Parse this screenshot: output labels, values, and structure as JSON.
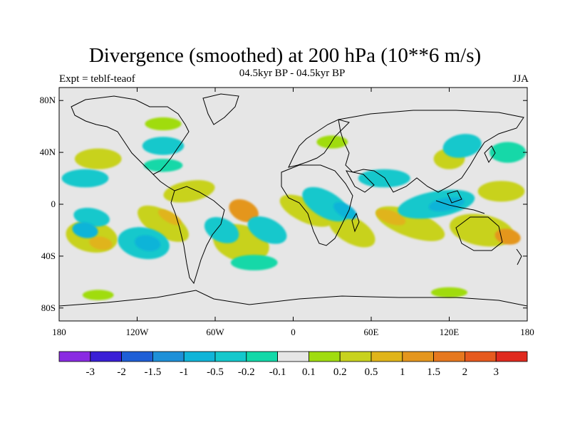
{
  "header": {
    "title": "Divergence (smoothed) at 200 hPa (10**6 m/s)",
    "experiment": "Expt = teblf-teaof",
    "period": "04.5kyr BP - 04.5kyr BP",
    "season": "JJA"
  },
  "axes": {
    "lat_ticks": [
      {
        "value": 80,
        "label": "80N"
      },
      {
        "value": 40,
        "label": "40N"
      },
      {
        "value": 0,
        "label": "0"
      },
      {
        "value": -40,
        "label": "40S"
      },
      {
        "value": -80,
        "label": "80S"
      }
    ],
    "lon_ticks": [
      {
        "value": -180,
        "label": "180"
      },
      {
        "value": -120,
        "label": "120W"
      },
      {
        "value": -60,
        "label": "60W"
      },
      {
        "value": 0,
        "label": "0"
      },
      {
        "value": 60,
        "label": "60E"
      },
      {
        "value": 120,
        "label": "120E"
      },
      {
        "value": 180,
        "label": "180"
      }
    ],
    "lon_range": [
      -180,
      180
    ],
    "lat_range": [
      -90,
      90
    ]
  },
  "colorbar": {
    "colors": [
      "#8a2be2",
      "#3a1fd6",
      "#1f5fd6",
      "#1e90d8",
      "#10b4d8",
      "#14c8cc",
      "#12d8a8",
      "#e6e6e6",
      "#a0dc10",
      "#c8d21e",
      "#e0b41a",
      "#e4961e",
      "#e6781e",
      "#e65a1e",
      "#e02a1e"
    ],
    "labels": [
      "-3",
      "-2",
      "-1.5",
      "-1",
      "-0.5",
      "-0.2",
      "-0.1",
      "0.1",
      "0.2",
      "0.5",
      "1",
      "1.5",
      "2",
      "3"
    ]
  },
  "map_data": {
    "background": "#e6e6e6",
    "fields": [
      {
        "sign": "pos",
        "level": 1,
        "lon": -155,
        "lat": -25,
        "rx": 20,
        "ry": 12,
        "rot": 10
      },
      {
        "sign": "pos",
        "level": 2,
        "lon": -148,
        "lat": -30,
        "rx": 9,
        "ry": 5,
        "rot": 10
      },
      {
        "sign": "pos",
        "level": 1,
        "lon": -100,
        "lat": -15,
        "rx": 22,
        "ry": 10,
        "rot": 30
      },
      {
        "sign": "pos",
        "level": 2,
        "lon": -95,
        "lat": -10,
        "rx": 10,
        "ry": 4,
        "rot": 30
      },
      {
        "sign": "pos",
        "level": 1,
        "lon": -40,
        "lat": -30,
        "rx": 22,
        "ry": 14,
        "rot": 15
      },
      {
        "sign": "pos",
        "level": 3,
        "lon": -38,
        "lat": -5,
        "rx": 12,
        "ry": 8,
        "rot": 25
      },
      {
        "sign": "pos",
        "level": 1,
        "lon": 10,
        "lat": -5,
        "rx": 22,
        "ry": 9,
        "rot": 25
      },
      {
        "sign": "pos",
        "level": 1,
        "lon": 45,
        "lat": -20,
        "rx": 20,
        "ry": 10,
        "rot": 30
      },
      {
        "sign": "pos",
        "level": 1,
        "lon": 90,
        "lat": -15,
        "rx": 28,
        "ry": 10,
        "rot": 20
      },
      {
        "sign": "pos",
        "level": 2,
        "lon": 75,
        "lat": -10,
        "rx": 12,
        "ry": 5,
        "rot": 20
      },
      {
        "sign": "pos",
        "level": 1,
        "lon": 145,
        "lat": -20,
        "rx": 25,
        "ry": 12,
        "rot": 10
      },
      {
        "sign": "pos",
        "level": 3,
        "lon": 165,
        "lat": -25,
        "rx": 10,
        "ry": 6,
        "rot": 10
      },
      {
        "sign": "pos",
        "level": 1,
        "lon": 120,
        "lat": 35,
        "rx": 12,
        "ry": 8,
        "rot": 0
      },
      {
        "sign": "pos",
        "level": 1,
        "lon": 160,
        "lat": 10,
        "rx": 18,
        "ry": 8,
        "rot": 0
      },
      {
        "sign": "pos",
        "level": 1,
        "lon": -150,
        "lat": 35,
        "rx": 18,
        "ry": 8,
        "rot": 0
      },
      {
        "sign": "pos",
        "level": 1,
        "lon": -80,
        "lat": 10,
        "rx": 20,
        "ry": 8,
        "rot": -10
      },
      {
        "sign": "pos",
        "level": 0,
        "lon": -150,
        "lat": -70,
        "rx": 12,
        "ry": 4,
        "rot": 0
      },
      {
        "sign": "pos",
        "level": 0,
        "lon": 120,
        "lat": -68,
        "rx": 14,
        "ry": 4,
        "rot": 0
      },
      {
        "sign": "pos",
        "level": 0,
        "lon": -100,
        "lat": 62,
        "rx": 14,
        "ry": 5,
        "rot": 0
      },
      {
        "sign": "pos",
        "level": 0,
        "lon": 30,
        "lat": 48,
        "rx": 12,
        "ry": 5,
        "rot": 0
      },
      {
        "sign": "neg",
        "level": 1,
        "lon": -155,
        "lat": -10,
        "rx": 14,
        "ry": 7,
        "rot": 10
      },
      {
        "sign": "neg",
        "level": 2,
        "lon": -160,
        "lat": -20,
        "rx": 10,
        "ry": 6,
        "rot": 10
      },
      {
        "sign": "neg",
        "level": 1,
        "lon": -115,
        "lat": -30,
        "rx": 20,
        "ry": 12,
        "rot": 10
      },
      {
        "sign": "neg",
        "level": 2,
        "lon": -112,
        "lat": -30,
        "rx": 10,
        "ry": 6,
        "rot": 10
      },
      {
        "sign": "neg",
        "level": 1,
        "lon": -55,
        "lat": -20,
        "rx": 14,
        "ry": 9,
        "rot": 25
      },
      {
        "sign": "neg",
        "level": 1,
        "lon": -20,
        "lat": -20,
        "rx": 16,
        "ry": 9,
        "rot": 25
      },
      {
        "sign": "neg",
        "level": 1,
        "lon": 25,
        "lat": 0,
        "rx": 20,
        "ry": 10,
        "rot": 30
      },
      {
        "sign": "neg",
        "level": 2,
        "lon": 40,
        "lat": -5,
        "rx": 10,
        "ry": 5,
        "rot": 30
      },
      {
        "sign": "neg",
        "level": 1,
        "lon": 110,
        "lat": 0,
        "rx": 30,
        "ry": 10,
        "rot": -10
      },
      {
        "sign": "neg",
        "level": 2,
        "lon": 118,
        "lat": 0,
        "rx": 14,
        "ry": 5,
        "rot": -10
      },
      {
        "sign": "neg",
        "level": 1,
        "lon": -160,
        "lat": 20,
        "rx": 18,
        "ry": 7,
        "rot": 0
      },
      {
        "sign": "neg",
        "level": 1,
        "lon": -100,
        "lat": 45,
        "rx": 16,
        "ry": 7,
        "rot": 0
      },
      {
        "sign": "neg",
        "level": 1,
        "lon": 70,
        "lat": 20,
        "rx": 20,
        "ry": 7,
        "rot": 0
      },
      {
        "sign": "neg",
        "level": 1,
        "lon": 130,
        "lat": 45,
        "rx": 15,
        "ry": 9,
        "rot": -10
      },
      {
        "sign": "neg",
        "level": 0,
        "lon": 165,
        "lat": 40,
        "rx": 14,
        "ry": 8,
        "rot": 0
      },
      {
        "sign": "neg",
        "level": 0,
        "lon": -100,
        "lat": 30,
        "rx": 15,
        "ry": 5,
        "rot": 0
      },
      {
        "sign": "neg",
        "level": 0,
        "lon": -30,
        "lat": -45,
        "rx": 18,
        "ry": 6,
        "rot": 0
      }
    ]
  }
}
